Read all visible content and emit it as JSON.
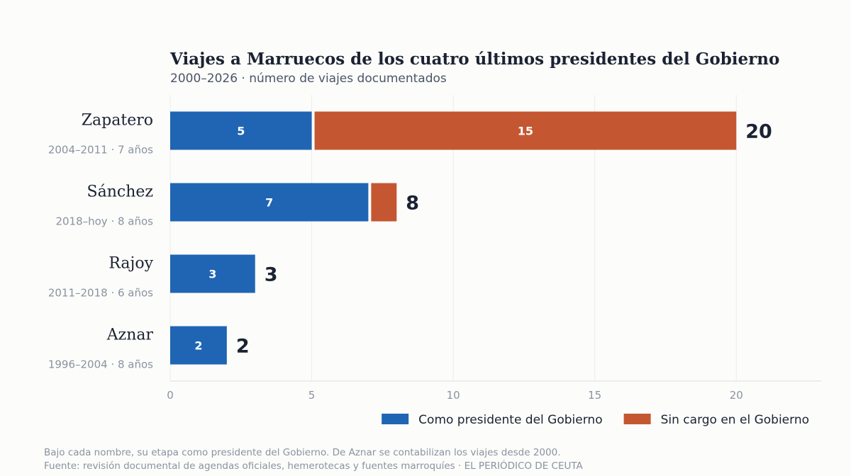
{
  "chart_data": {
    "type": "bar",
    "orientation": "horizontal",
    "stacked": true,
    "title": "Viajes a Marruecos de los cuatro últimos presidentes del Gobierno",
    "subtitle": "2000–2026 · número de viajes documentados",
    "categories": [
      "Zapatero",
      "Sánchez",
      "Rajoy",
      "Aznar"
    ],
    "category_subtitles": [
      "2004–2011 · 7 años",
      "2018–hoy · 8 años",
      "2011–2018 · 6 años",
      "1996–2004 · 8 años"
    ],
    "series": [
      {
        "name": "Como presidente del Gobierno",
        "color": "#1f65b4",
        "values": [
          5,
          7,
          3,
          2
        ],
        "labels": [
          "5",
          "7",
          "3",
          "2"
        ]
      },
      {
        "name": "Sin cargo en el Gobierno",
        "color": "#c45731",
        "values": [
          15,
          1,
          0,
          0
        ],
        "labels": [
          "15",
          "",
          "",
          ""
        ]
      }
    ],
    "totals": [
      "20",
      "8",
      "3",
      "2"
    ],
    "xlim": [
      0,
      23
    ],
    "x_ticks": [
      "0",
      "5",
      "10",
      "15",
      "20"
    ],
    "grid": true,
    "legend_position": "bottom-right"
  },
  "footer": {
    "note": "Bajo cada nombre, su etapa como presidente del Gobierno. De Aznar se contabilizan los viajes desde 2000.",
    "source": "Fuente: revisión documental de agendas oficiales, hemerotecas y fuentes marroquíes · EL PERIÓDICO DE CEUTA"
  }
}
